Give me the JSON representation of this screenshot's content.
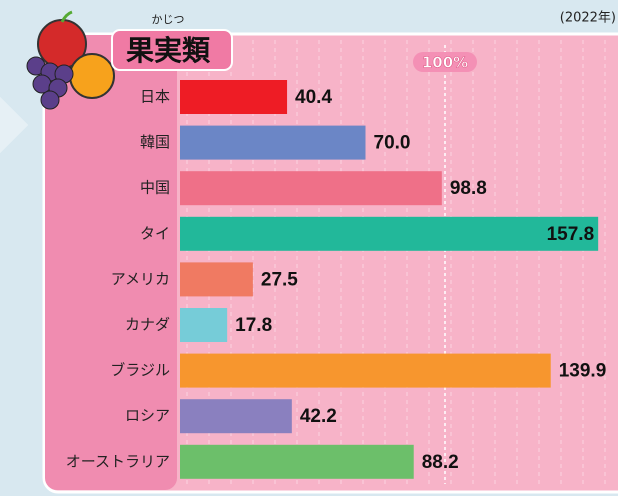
{
  "chart_data": {
    "type": "bar",
    "orientation": "horizontal",
    "title": "果実類",
    "title_ruby": "かじつ",
    "note": "(2022年)",
    "categories": [
      "日本",
      "韓国",
      "中国",
      "タイ",
      "アメリカ",
      "カナダ",
      "ブラジル",
      "ロシア",
      "オーストラリア"
    ],
    "values": [
      40.4,
      70.0,
      98.8,
      157.8,
      27.5,
      17.8,
      139.9,
      42.2,
      88.2
    ],
    "value_labels": [
      "40.4",
      "70.0",
      "98.8",
      "157.8",
      "27.5",
      "17.8",
      "139.9",
      "42.2",
      "88.2"
    ],
    "colors": [
      "#ee1c25",
      "#6b86c6",
      "#ef7088",
      "#22b89a",
      "#f07a62",
      "#76ccd8",
      "#f7962e",
      "#8a80bf",
      "#6cbf6a"
    ],
    "xlim": [
      0,
      160
    ],
    "xticks": [
      {
        "value": 100,
        "label": "100%"
      }
    ]
  }
}
